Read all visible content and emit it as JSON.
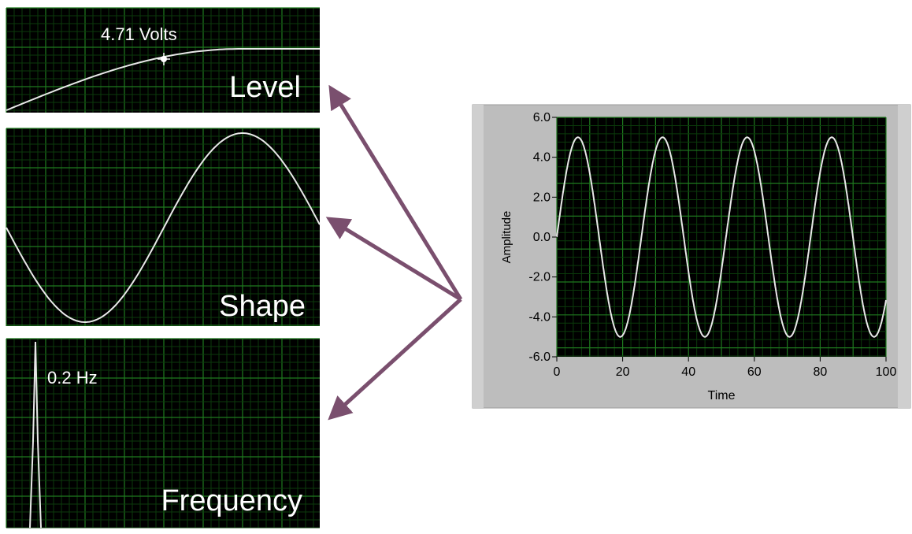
{
  "colors": {
    "plot_background": "#000000",
    "grid_minor": "#0b3a0b",
    "grid_major": "#1f7a1f",
    "trace": "#e8e8e8",
    "panel_frame": "#bdbdbd",
    "label_text": "#ffffff",
    "arrow": "#7a4f6e"
  },
  "panels": {
    "level": {
      "readout": "4.71 Volts",
      "label": "Level"
    },
    "shape": {
      "label": "Shape"
    },
    "frequency": {
      "readout": "0.2 Hz",
      "label": "Frequency"
    }
  },
  "chart_data": {
    "type": "line",
    "title": "",
    "xlabel": "Time",
    "ylabel": "Amplitude",
    "xlim": [
      0,
      100
    ],
    "ylim": [
      -6.0,
      6.0
    ],
    "x_ticks": [
      "0",
      "20",
      "40",
      "60",
      "80",
      "100"
    ],
    "y_ticks": [
      "6.0",
      "4.0",
      "2.0",
      "0.0",
      "-2.0",
      "-4.0",
      "-6.0"
    ],
    "grid": true,
    "series": [
      {
        "amplitude": 5.0,
        "period": 25.7,
        "phase": 0.0
      }
    ]
  }
}
